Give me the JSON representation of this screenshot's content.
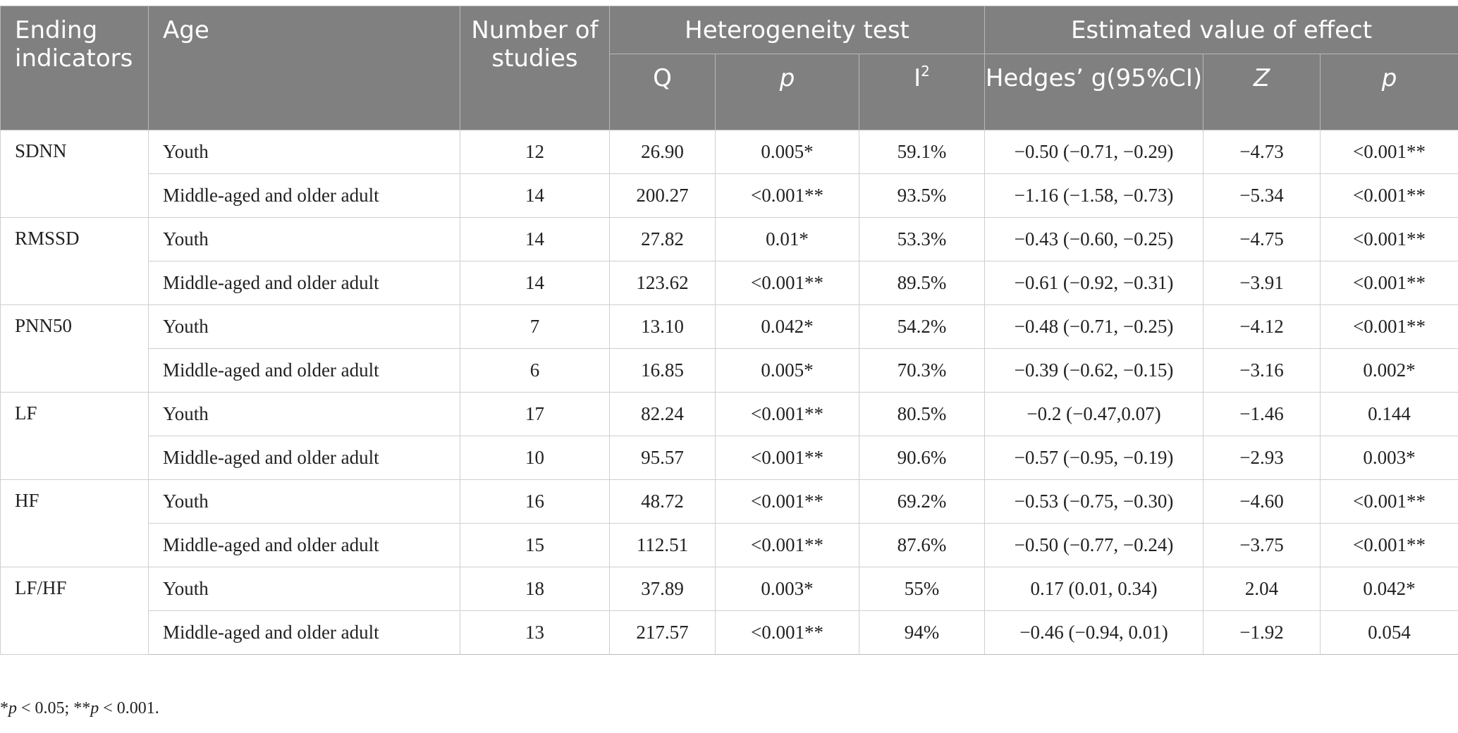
{
  "header": {
    "ending_indicators": "Ending indicators",
    "age": "Age",
    "number_of_studies": "Number of studies",
    "heterogeneity_test": "Heterogeneity test",
    "estimated_value": "Estimated value of effect",
    "q": "Q",
    "p": "p",
    "i2_base": "I",
    "i2_sup": "2",
    "hedges": "Hedges’ g(95%CI)",
    "z": "Z",
    "p2": "p"
  },
  "rows": [
    {
      "indicator": "SDNN",
      "age": "Youth",
      "n": "12",
      "q": "26.90",
      "p": "0.005*",
      "i2": "59.1%",
      "g": "−0.50 (−0.71, −0.29)",
      "z": "−4.73",
      "pz": "<0.001**"
    },
    {
      "age": "Middle-aged and older adult",
      "n": "14",
      "q": "200.27",
      "p": "<0.001**",
      "i2": "93.5%",
      "g": "−1.16 (−1.58, −0.73)",
      "z": "−5.34",
      "pz": "<0.001**"
    },
    {
      "indicator": "RMSSD",
      "age": "Youth",
      "n": "14",
      "q": "27.82",
      "p": "0.01*",
      "i2": "53.3%",
      "g": "−0.43 (−0.60, −0.25)",
      "z": "−4.75",
      "pz": "<0.001**"
    },
    {
      "age": "Middle-aged and older adult",
      "n": "14",
      "q": "123.62",
      "p": "<0.001**",
      "i2": "89.5%",
      "g": "−0.61 (−0.92, −0.31)",
      "z": "−3.91",
      "pz": "<0.001**"
    },
    {
      "indicator": "PNN50",
      "age": "Youth",
      "n": "7",
      "q": "13.10",
      "p": "0.042*",
      "i2": "54.2%",
      "g": "−0.48 (−0.71, −0.25)",
      "z": "−4.12",
      "pz": "<0.001**"
    },
    {
      "age": "Middle-aged and older adult",
      "n": "6",
      "q": "16.85",
      "p": "0.005*",
      "i2": "70.3%",
      "g": "−0.39 (−0.62, −0.15)",
      "z": "−3.16",
      "pz": "0.002*"
    },
    {
      "indicator": "LF",
      "age": "Youth",
      "n": "17",
      "q": "82.24",
      "p": "<0.001**",
      "i2": "80.5%",
      "g": "−0.2 (−0.47,0.07)",
      "z": "−1.46",
      "pz": "0.144"
    },
    {
      "age": "Middle-aged and older adult",
      "n": "10",
      "q": "95.57",
      "p": "<0.001**",
      "i2": "90.6%",
      "g": "−0.57 (−0.95, −0.19)",
      "z": "−2.93",
      "pz": "0.003*"
    },
    {
      "indicator": "HF",
      "age": "Youth",
      "n": "16",
      "q": "48.72",
      "p": "<0.001**",
      "i2": "69.2%",
      "g": "−0.53 (−0.75, −0.30)",
      "z": "−4.60",
      "pz": "<0.001**"
    },
    {
      "age": "Middle-aged and older adult",
      "n": "15",
      "q": "112.51",
      "p": "<0.001**",
      "i2": "87.6%",
      "g": "−0.50 (−0.77, −0.24)",
      "z": "−3.75",
      "pz": "<0.001**"
    },
    {
      "indicator": "LF/HF",
      "age": "Youth",
      "n": "18",
      "q": "37.89",
      "p": "0.003*",
      "i2": "55%",
      "g": "0.17 (0.01, 0.34)",
      "z": "2.04",
      "pz": "0.042*"
    },
    {
      "age": "Middle-aged and older adult",
      "n": "13",
      "q": "217.57",
      "p": "<0.001**",
      "i2": "94%",
      "g": "−0.46 (−0.94, 0.01)",
      "z": "−1.92",
      "pz": "0.054"
    }
  ],
  "footnote": {
    "star1": "*",
    "p_a": "p",
    "text_a": " < 0.05; **",
    "p_b": "p",
    "text_b": " < 0.001."
  },
  "colors": {
    "header_bg": "#808080",
    "header_text": "#ffffff",
    "grid": "#cfcfcf"
  }
}
